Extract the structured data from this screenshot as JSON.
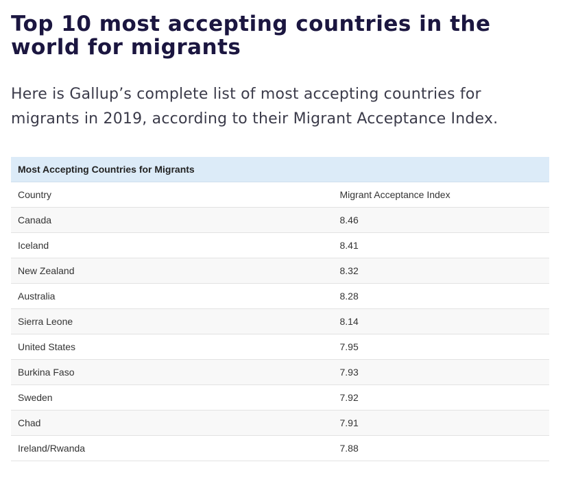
{
  "article": {
    "title": "Top 10 most accepting countries in the world for migrants",
    "intro": "Here is Gallup’s complete list of most accepting countries for migrants in 2019, according to their Migrant Acceptance Index."
  },
  "table": {
    "caption": "Most Accepting Countries for Migrants",
    "columns": [
      "Country",
      "Migrant Acceptance Index"
    ],
    "rows": [
      [
        "Canada",
        "8.46"
      ],
      [
        "Iceland",
        "8.41"
      ],
      [
        "New Zealand",
        "8.32"
      ],
      [
        "Australia",
        "8.28"
      ],
      [
        "Sierra Leone",
        "8.14"
      ],
      [
        "United States",
        "7.95"
      ],
      [
        "Burkina Faso",
        "7.93"
      ],
      [
        "Sweden",
        "7.92"
      ],
      [
        "Chad",
        "7.91"
      ],
      [
        "Ireland/Rwanda",
        "7.88"
      ]
    ]
  }
}
